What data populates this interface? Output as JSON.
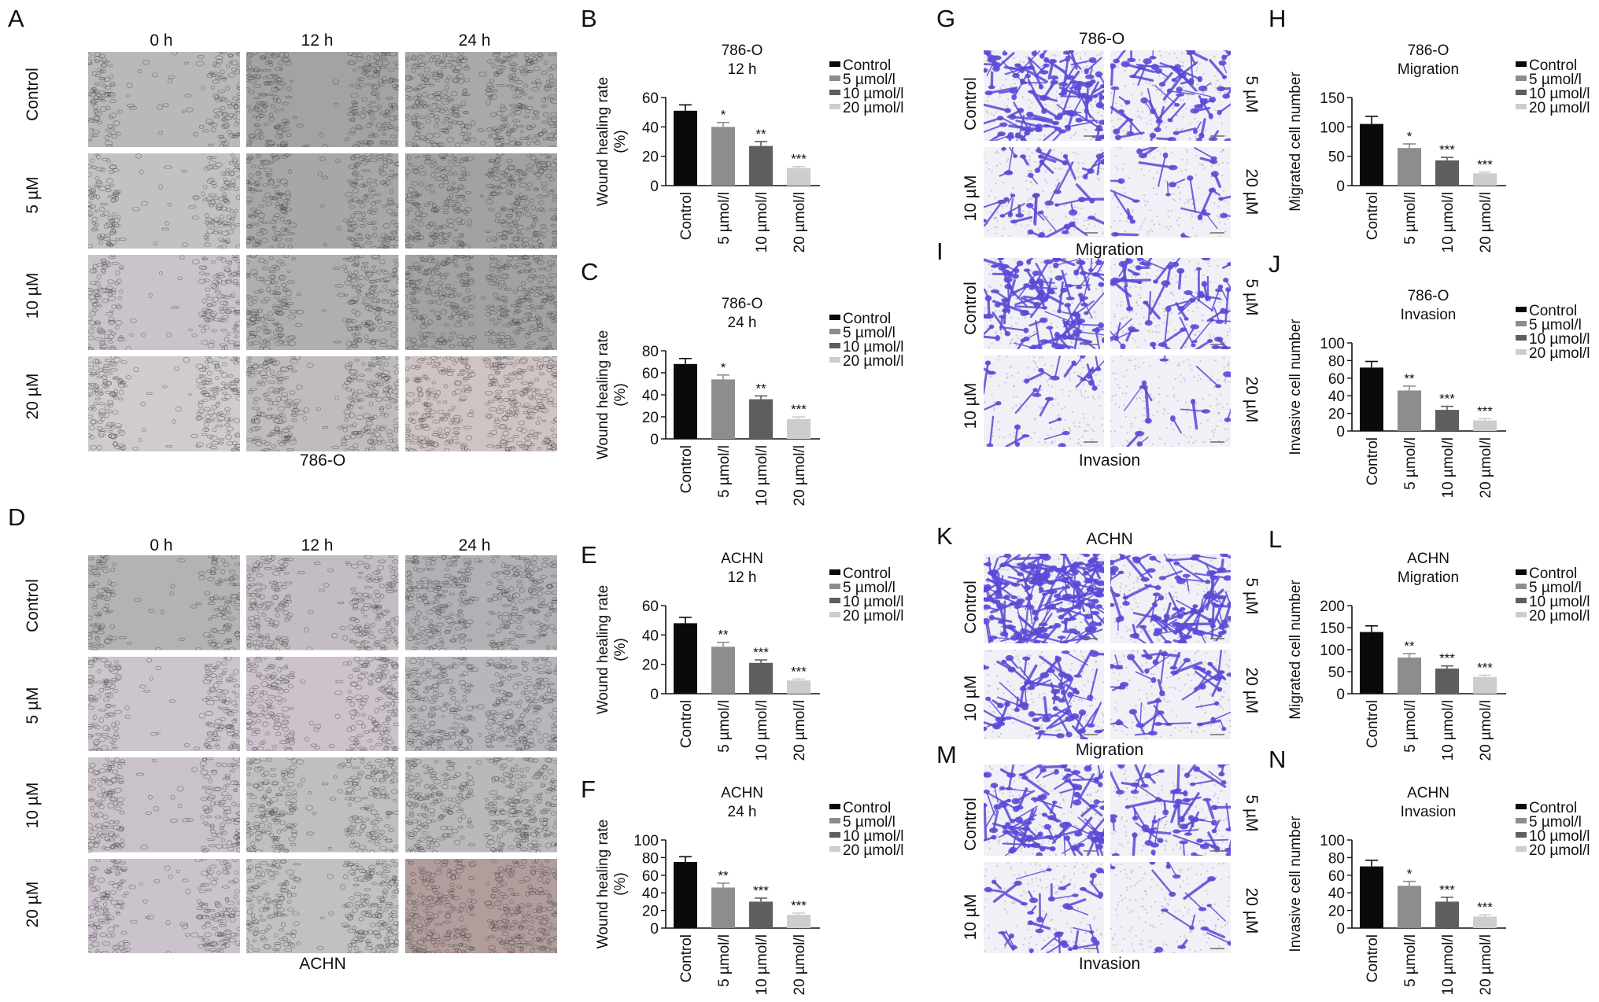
{
  "figure": {
    "panels": {
      "A": "A",
      "B": "B",
      "C": "C",
      "D": "D",
      "E": "E",
      "F": "F",
      "G": "G",
      "H": "H",
      "I": "I",
      "J": "J",
      "K": "K",
      "L": "L",
      "M": "M",
      "N": "N"
    },
    "wound_time_labels": [
      "0 h",
      "12 h",
      "24 h"
    ],
    "wound_row_labels": [
      "Control",
      "5 µM",
      "10 µM",
      "20 µM"
    ],
    "transwell_row_labels_left": [
      "Control",
      "10 µM"
    ],
    "transwell_row_labels_right": [
      "5 µM",
      "20 µM"
    ],
    "captions": {
      "A": "786-O",
      "D": "ACHN",
      "G_top": "786-O",
      "G_bottom": "Migration",
      "I_bottom": "Invasion",
      "K_top": "ACHN",
      "K_bottom": "Migration",
      "M_bottom": "Invasion"
    },
    "legend_entries": [
      "Control",
      "5 µmol/l",
      "10 µmol/l",
      "20 µmol/l"
    ],
    "colors": {
      "control": "#0a0a0a",
      "c5": "#8d8d8d",
      "c10": "#5e5e5e",
      "c20": "#cdcdcd",
      "stain": "#5a4ad6"
    }
  },
  "chart_data": [
    {
      "id": "B",
      "type": "bar",
      "title": "786-O",
      "subtitle": "12 h",
      "ylabel": "Wound healing rate (%)",
      "ylim": [
        0,
        60
      ],
      "yticks": [
        0,
        20,
        40,
        60
      ],
      "categories": [
        "Control",
        "5 µmol/l",
        "10 µmol/l",
        "20 µmol/l"
      ],
      "values": [
        51,
        40,
        27,
        12
      ],
      "errors": [
        4,
        3,
        3,
        1
      ],
      "annotations": [
        "",
        "*",
        "**",
        "***"
      ]
    },
    {
      "id": "C",
      "type": "bar",
      "title": "786-O",
      "subtitle": "24 h",
      "ylabel": "Wound healing rate (%)",
      "ylim": [
        0,
        80
      ],
      "yticks": [
        0,
        20,
        40,
        60,
        80
      ],
      "categories": [
        "Control",
        "5 µmol/l",
        "10 µmol/l",
        "20 µmol/l"
      ],
      "values": [
        68,
        54,
        36,
        18
      ],
      "errors": [
        5,
        4,
        3,
        2
      ],
      "annotations": [
        "",
        "*",
        "**",
        "***"
      ]
    },
    {
      "id": "E",
      "type": "bar",
      "title": "ACHN",
      "subtitle": "12 h",
      "ylabel": "Wound healing rate (%)",
      "ylim": [
        0,
        60
      ],
      "yticks": [
        0,
        20,
        40,
        60
      ],
      "categories": [
        "Control",
        "5 µmol/l",
        "10 µmol/l",
        "20 µmol/l"
      ],
      "values": [
        48,
        32,
        21,
        9
      ],
      "errors": [
        4,
        3,
        2,
        1
      ],
      "annotations": [
        "",
        "**",
        "***",
        "***"
      ]
    },
    {
      "id": "F",
      "type": "bar",
      "title": "ACHN",
      "subtitle": "24 h",
      "ylabel": "Wound healing rate (%)",
      "ylim": [
        0,
        100
      ],
      "yticks": [
        0,
        20,
        40,
        60,
        80,
        100
      ],
      "categories": [
        "Control",
        "5 µmol/l",
        "10 µmol/l",
        "20 µmol/l"
      ],
      "values": [
        75,
        46,
        30,
        15
      ],
      "errors": [
        6,
        5,
        4,
        2
      ],
      "annotations": [
        "",
        "**",
        "***",
        "***"
      ]
    },
    {
      "id": "H",
      "type": "bar",
      "title": "786-O",
      "subtitle": "Migration",
      "ylabel": "Migrated cell number",
      "ylim": [
        0,
        150
      ],
      "yticks": [
        0,
        50,
        100,
        150
      ],
      "categories": [
        "Control",
        "5 µmol/l",
        "10 µmol/l",
        "20 µmol/l"
      ],
      "values": [
        105,
        64,
        43,
        21
      ],
      "errors": [
        13,
        7,
        5,
        2
      ],
      "annotations": [
        "",
        "*",
        "***",
        "***"
      ]
    },
    {
      "id": "J",
      "type": "bar",
      "title": "786-O",
      "subtitle": "Invasion",
      "ylabel": "Invasive cell number",
      "ylim": [
        0,
        100
      ],
      "yticks": [
        0,
        20,
        40,
        60,
        80,
        100
      ],
      "categories": [
        "Control",
        "5 µmol/l",
        "10 µmol/l",
        "20 µmol/l"
      ],
      "values": [
        72,
        46,
        24,
        12
      ],
      "errors": [
        7,
        5,
        4,
        2
      ],
      "annotations": [
        "",
        "**",
        "***",
        "***"
      ]
    },
    {
      "id": "L",
      "type": "bar",
      "title": "ACHN",
      "subtitle": "Migration",
      "ylabel": "Migrated cell number",
      "ylim": [
        0,
        200
      ],
      "yticks": [
        0,
        50,
        100,
        150,
        200
      ],
      "categories": [
        "Control",
        "5 µmol/l",
        "10 µmol/l",
        "20 µmol/l"
      ],
      "values": [
        140,
        82,
        57,
        38
      ],
      "errors": [
        14,
        9,
        6,
        4
      ],
      "annotations": [
        "",
        "**",
        "***",
        "***"
      ]
    },
    {
      "id": "N",
      "type": "bar",
      "title": "ACHN",
      "subtitle": "Invasion",
      "ylabel": "Invasive cell number",
      "ylim": [
        0,
        100
      ],
      "yticks": [
        0,
        20,
        40,
        60,
        80,
        100
      ],
      "categories": [
        "Control",
        "5 µmol/l",
        "10 µmol/l",
        "20 µmol/l"
      ],
      "values": [
        70,
        48,
        30,
        13
      ],
      "errors": [
        7,
        5,
        5,
        2
      ],
      "annotations": [
        "",
        "*",
        "***",
        "***"
      ]
    }
  ]
}
